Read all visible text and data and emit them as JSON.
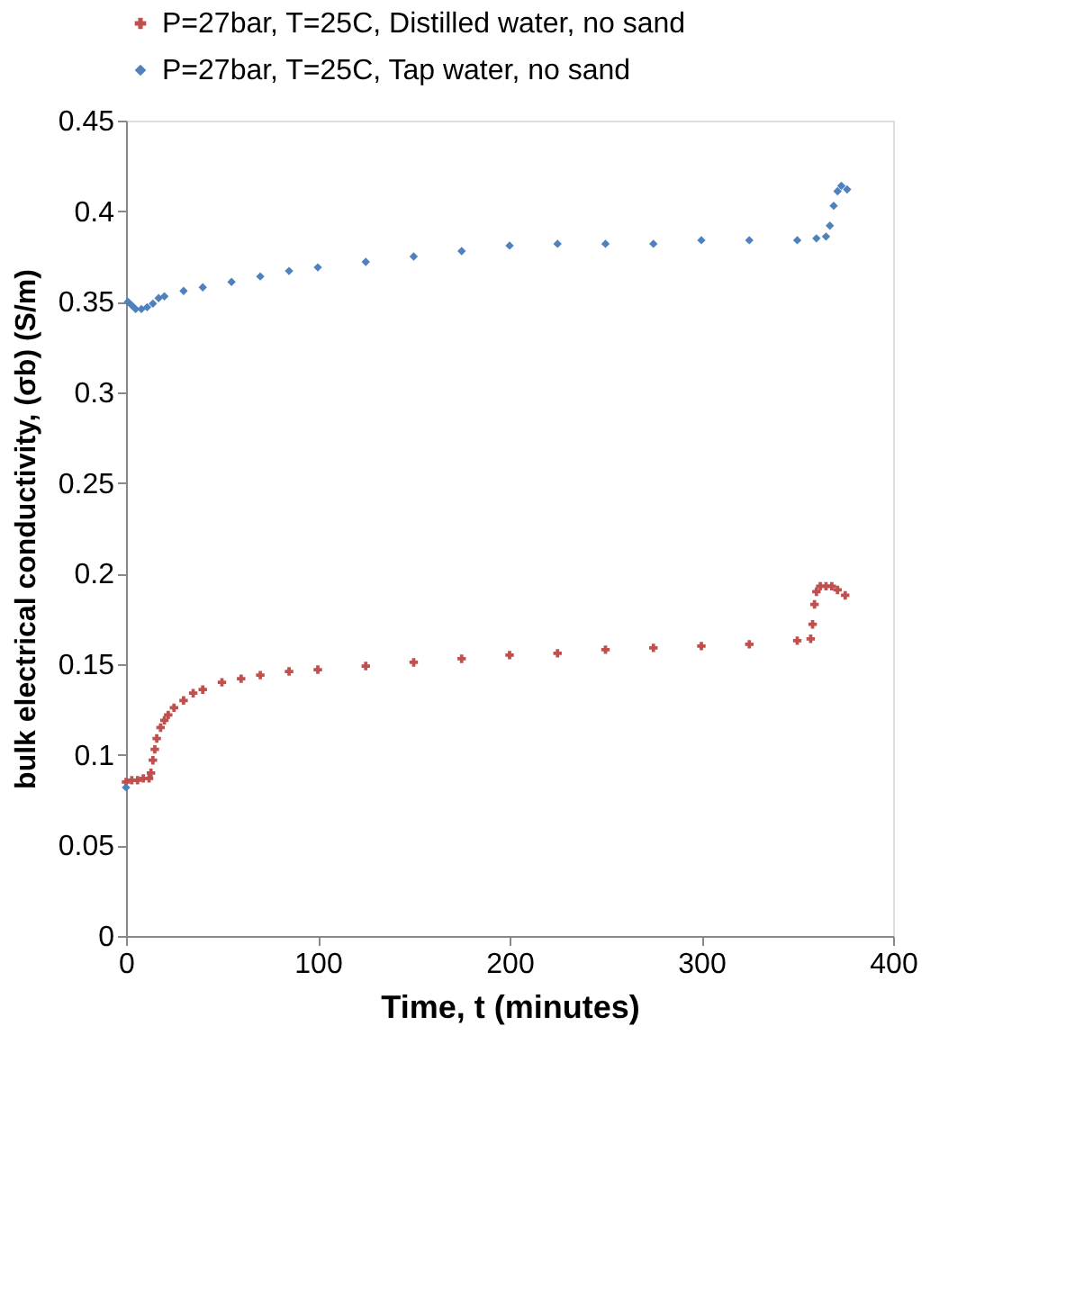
{
  "chart_data": {
    "type": "scatter",
    "xlabel": "Time, t (minutes)",
    "ylabel": "bulk electrical conductivity, (σb) (S/m)",
    "xlim": [
      0,
      400
    ],
    "xticks": [
      0,
      100,
      200,
      300,
      400
    ],
    "ylim": [
      0,
      0.45
    ],
    "yticks": [
      0,
      0.05,
      0.1,
      0.15,
      0.2,
      0.25,
      0.3,
      0.35,
      0.4,
      0.45
    ],
    "grid": false,
    "legend": "top left",
    "series": [
      {
        "name": "P=27bar, T=25C, Distilled water, no sand",
        "color": "#c0504d",
        "marker": "cross",
        "x": [
          0,
          3,
          6,
          9,
          12,
          13,
          14,
          15,
          16,
          18,
          20,
          22,
          25,
          30,
          35,
          40,
          50,
          60,
          70,
          85,
          100,
          125,
          150,
          175,
          200,
          225,
          250,
          275,
          300,
          325,
          350,
          357,
          358,
          359,
          360,
          362,
          365,
          368,
          371,
          375
        ],
        "values": [
          0.085,
          0.086,
          0.086,
          0.087,
          0.087,
          0.09,
          0.097,
          0.103,
          0.109,
          0.115,
          0.119,
          0.122,
          0.126,
          0.13,
          0.134,
          0.136,
          0.14,
          0.142,
          0.144,
          0.146,
          0.147,
          0.149,
          0.151,
          0.153,
          0.155,
          0.156,
          0.158,
          0.159,
          0.16,
          0.161,
          0.163,
          0.164,
          0.172,
          0.183,
          0.19,
          0.193,
          0.193,
          0.193,
          0.191,
          0.188
        ]
      },
      {
        "name": "P=27bar, T=25C, Tap water, no sand",
        "color": "#4f81bd",
        "marker": "diamond",
        "x": [
          0,
          1,
          3,
          5,
          8,
          11,
          14,
          17,
          20,
          30,
          40,
          55,
          70,
          85,
          100,
          125,
          150,
          175,
          200,
          225,
          250,
          275,
          300,
          325,
          350,
          360,
          365,
          367,
          369,
          371,
          373,
          376
        ],
        "values": [
          0.082,
          0.35,
          0.348,
          0.346,
          0.346,
          0.347,
          0.349,
          0.352,
          0.353,
          0.356,
          0.358,
          0.361,
          0.364,
          0.367,
          0.369,
          0.372,
          0.375,
          0.378,
          0.381,
          0.382,
          0.382,
          0.382,
          0.384,
          0.384,
          0.384,
          0.385,
          0.386,
          0.392,
          0.403,
          0.411,
          0.414,
          0.412
        ]
      }
    ]
  }
}
